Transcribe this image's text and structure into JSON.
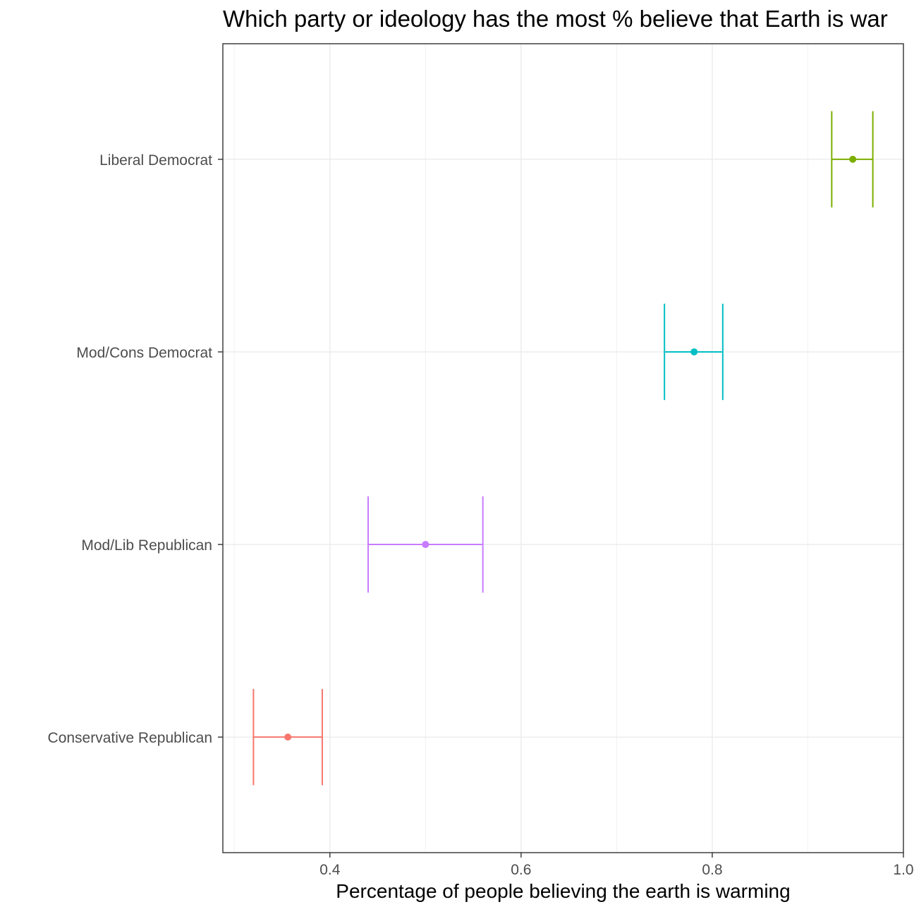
{
  "chart_data": {
    "type": "errorbar",
    "title": "Which party or ideology has the most % believe that Earth is war",
    "xlabel": "Percentage of people believing the earth is warming",
    "ylabel": "",
    "xlim": [
      0.288,
      1.0
    ],
    "x_ticks": [
      "0.4",
      "0.6",
      "0.8",
      "1.0"
    ],
    "x_tick_values": [
      0.4,
      0.6,
      0.8,
      1.0
    ],
    "grid": true,
    "legend": "none",
    "categories": [
      "Conservative Republican",
      "Mod/Lib Republican",
      "Mod/Cons Democrat",
      "Liberal Democrat"
    ],
    "series": [
      {
        "category": "Conservative Republican",
        "value": 0.356,
        "lower": 0.32,
        "upper": 0.392,
        "color": "#F8766D"
      },
      {
        "category": "Mod/Lib Republican",
        "value": 0.5,
        "lower": 0.44,
        "upper": 0.56,
        "color": "#C77CFF"
      },
      {
        "category": "Mod/Cons Democrat",
        "value": 0.781,
        "lower": 0.75,
        "upper": 0.811,
        "color": "#00BFC4"
      },
      {
        "category": "Liberal Democrat",
        "value": 0.947,
        "lower": 0.925,
        "upper": 0.968,
        "color": "#7CAE00"
      }
    ]
  }
}
